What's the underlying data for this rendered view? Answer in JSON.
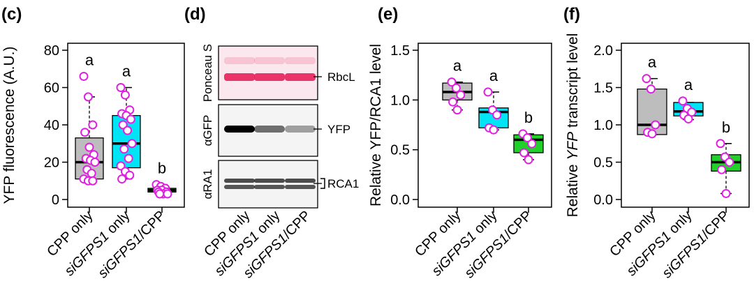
{
  "colors": {
    "gray": "#bdbdbd",
    "cyan": "#00e5f5",
    "green": "#20d12a",
    "point_stroke": "#e020e0",
    "point_fill": "#ffffff",
    "ponceau": "#e8205a"
  },
  "panel_d": {
    "letter": "(d)",
    "rows": [
      {
        "label": "Ponceau S",
        "band": "RbcL",
        "type": "ponceau"
      },
      {
        "label": "αGFP",
        "band": "YFP",
        "type": "yfp"
      },
      {
        "label": "αRA1",
        "band": "RCA1",
        "type": "rca"
      }
    ],
    "lanes": [
      "CPP only",
      "siGFPS1 only",
      "siGFPS1/CPP"
    ]
  },
  "chart_data": [
    {
      "type": "box",
      "panel": "(c)",
      "ylabel": "YFP fluorescence (A.U.)",
      "ylim": [
        0,
        80
      ],
      "yticks": [
        0,
        20,
        40,
        60,
        80
      ],
      "categories": [
        "CPP only",
        "siGFPS1 only",
        "siGFPS1/CPP"
      ],
      "boxes": [
        {
          "min": 10,
          "q1": 11,
          "median": 20,
          "q3": 33,
          "max": 55,
          "letter": "a",
          "color": "gray",
          "points": [
            66,
            55,
            40,
            36,
            28,
            24,
            22,
            21,
            20,
            16,
            14,
            11,
            10,
            10
          ]
        },
        {
          "min": 11,
          "q1": 17,
          "median": 30,
          "q3": 45,
          "max": 60,
          "letter": "a",
          "color": "cyan",
          "points": [
            60,
            56,
            48,
            46,
            45,
            43,
            40,
            37,
            30,
            27,
            22,
            18,
            15,
            13,
            11
          ]
        },
        {
          "min": 3,
          "q1": 4,
          "median": 5,
          "q3": 6,
          "max": 8,
          "letter": "b",
          "color": "green",
          "points": [
            8,
            7,
            6,
            5,
            5,
            4,
            4,
            3,
            3,
            3
          ]
        }
      ]
    },
    {
      "type": "box",
      "panel": "(e)",
      "ylabel": "Relative YFP/RCA1 level",
      "ylim": [
        0,
        1.5
      ],
      "yticks": [
        "0.0",
        "0.5",
        "1.0",
        "1.5"
      ],
      "categories": [
        "CPP only",
        "siGFPS1 only",
        "siGFPS1/CPP"
      ],
      "boxes": [
        {
          "min": 0.9,
          "q1": 1.0,
          "median": 1.08,
          "q3": 1.17,
          "max": 1.18,
          "letter": "a",
          "color": "gray",
          "points": [
            1.18,
            1.12,
            1.05,
            0.98,
            0.9
          ]
        },
        {
          "min": 0.7,
          "q1": 0.72,
          "median": 0.88,
          "q3": 0.92,
          "max": 1.08,
          "letter": "a",
          "color": "cyan",
          "points": [
            1.08,
            0.9,
            0.85,
            0.72,
            0.7
          ]
        },
        {
          "min": 0.4,
          "q1": 0.47,
          "median": 0.6,
          "q3": 0.65,
          "max": 0.66,
          "letter": "b",
          "color": "green",
          "points": [
            0.66,
            0.62,
            0.56,
            0.47,
            0.4
          ]
        }
      ]
    },
    {
      "type": "box",
      "panel": "(f)",
      "ylabel_prefix": "Relative ",
      "ylabel_italic": "YFP",
      "ylabel_suffix": " transcript level",
      "ylim": [
        0,
        2.0
      ],
      "yticks": [
        "0.0",
        "0.5",
        "1.0",
        "1.5",
        "2.0"
      ],
      "categories": [
        "CPP only",
        "siGFPS1 only",
        "siGFPS1/CPP"
      ],
      "boxes": [
        {
          "min": 0.87,
          "q1": 0.87,
          "median": 1.0,
          "q3": 1.48,
          "max": 1.62,
          "letter": "a",
          "color": "gray",
          "points": [
            1.62,
            1.48,
            1.0,
            0.9,
            0.88
          ]
        },
        {
          "min": 1.07,
          "q1": 1.12,
          "median": 1.18,
          "q3": 1.3,
          "max": 1.3,
          "letter": "a",
          "color": "cyan",
          "points": [
            1.32,
            1.22,
            1.17,
            1.13,
            1.08
          ]
        },
        {
          "min": 0.08,
          "q1": 0.38,
          "median": 0.5,
          "q3": 0.6,
          "max": 0.75,
          "letter": "b",
          "color": "green",
          "points": [
            0.75,
            0.57,
            0.5,
            0.4,
            0.08
          ]
        }
      ]
    }
  ]
}
